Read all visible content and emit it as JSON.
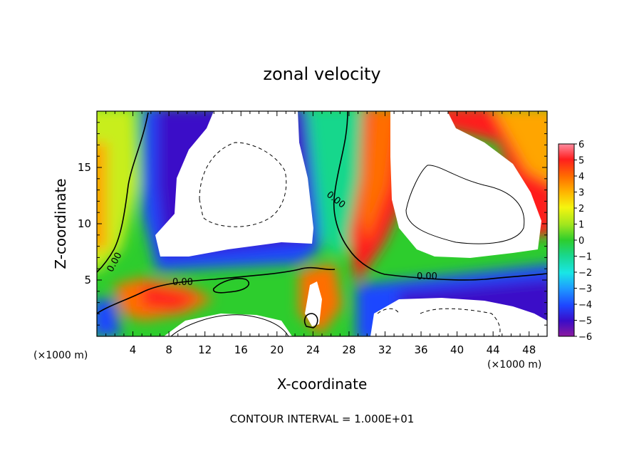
{
  "chart_data": {
    "type": "heatmap",
    "title": "zonal velocity",
    "xlabel": "X-coordinate",
    "ylabel": "Z-coordinate",
    "x_unit_left": "(×1000 m)",
    "x_unit_right": "(×1000 m)",
    "xlim": [
      0,
      50
    ],
    "ylim": [
      0,
      20
    ],
    "x_ticks": [
      4,
      8,
      12,
      16,
      20,
      24,
      28,
      32,
      36,
      40,
      44,
      48
    ],
    "y_ticks": [
      5,
      10,
      15
    ],
    "colorbar": {
      "min": -6,
      "max": 6,
      "ticks": [
        6,
        5,
        4,
        3,
        2,
        1,
        0,
        -1,
        -2,
        -3,
        -4,
        -5,
        -6
      ],
      "colors": [
        "#8b1a9e",
        "#3a0cc8",
        "#1e46ff",
        "#1e9cff",
        "#19e6e6",
        "#19d78c",
        "#2dcd2d",
        "#a0e61e",
        "#f5f50f",
        "#ffb400",
        "#ff6e00",
        "#ff1e1e",
        "#ff8ca0"
      ]
    },
    "contour_labels": [
      "0.00",
      "0.00",
      "0.00",
      "0.00"
    ],
    "footer": "CONTOUR INTERVAL = 1.000E+01"
  }
}
